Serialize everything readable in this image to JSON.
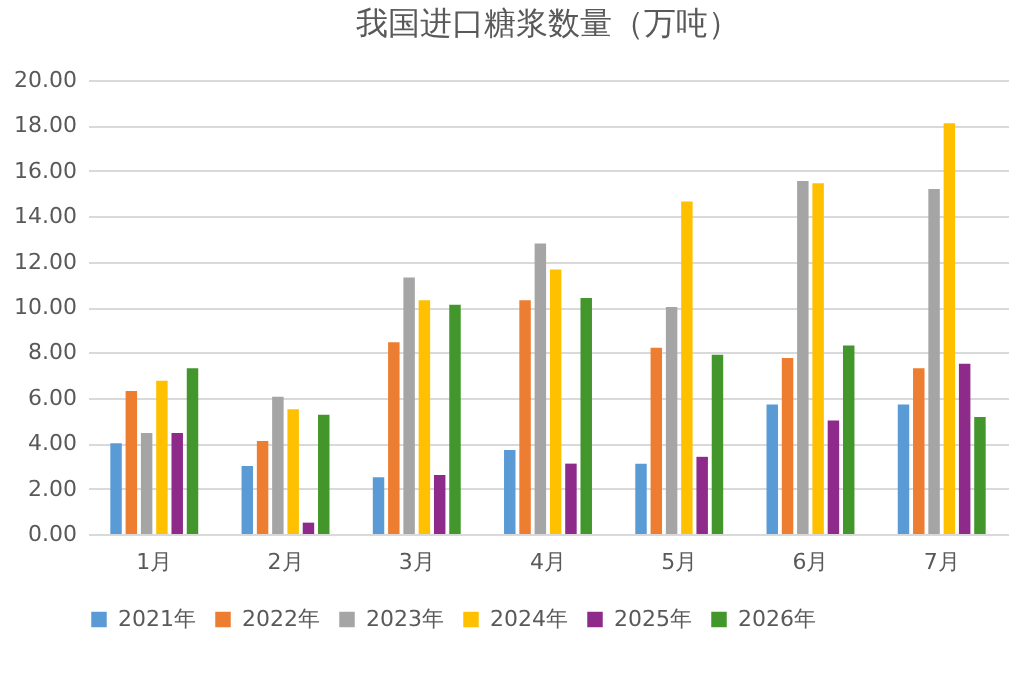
{
  "chart_data": {
    "type": "bar",
    "title": "我国进口糖浆数量（万吨）",
    "categories": [
      "1月",
      "2月",
      "3月",
      "4月",
      "5月",
      "6月",
      "7月"
    ],
    "series": [
      {
        "name": "2021年",
        "color": "#5b9bd5",
        "values": [
          4.0,
          3.0,
          2.5,
          3.7,
          3.1,
          5.7,
          5.7
        ]
      },
      {
        "name": "2022年",
        "color": "#ed7d31",
        "values": [
          6.3,
          4.1,
          8.45,
          10.3,
          8.2,
          7.75,
          7.3
        ]
      },
      {
        "name": "2023年",
        "color": "#a5a5a5",
        "values": [
          4.45,
          6.05,
          11.3,
          12.8,
          10.0,
          15.55,
          15.2
        ]
      },
      {
        "name": "2024年",
        "color": "#ffc000",
        "values": [
          6.75,
          5.5,
          10.3,
          11.65,
          14.65,
          15.45,
          18.1
        ]
      },
      {
        "name": "2025年",
        "color": "#8e2a8a",
        "values": [
          4.45,
          0.5,
          2.6,
          3.1,
          3.4,
          5.0,
          7.5
        ]
      },
      {
        "name": "2026年",
        "color": "#43962c",
        "values": [
          7.3,
          5.25,
          10.1,
          10.4,
          7.9,
          8.3,
          5.15
        ]
      }
    ],
    "ylim": [
      0,
      20
    ],
    "yticks": [
      {
        "value": 0,
        "label": "0.00"
      },
      {
        "value": 2,
        "label": "2.00"
      },
      {
        "value": 4,
        "label": "4.00"
      },
      {
        "value": 6,
        "label": "6.00"
      },
      {
        "value": 8,
        "label": "8.00"
      },
      {
        "value": 10,
        "label": "10.00"
      },
      {
        "value": 12,
        "label": "12.00"
      },
      {
        "value": 14,
        "label": "14.00"
      },
      {
        "value": 16,
        "label": "16.00"
      },
      {
        "value": 18,
        "label": "18.00"
      },
      {
        "value": 20,
        "label": "20.00"
      }
    ],
    "grid": "y",
    "legend": "bottom"
  }
}
